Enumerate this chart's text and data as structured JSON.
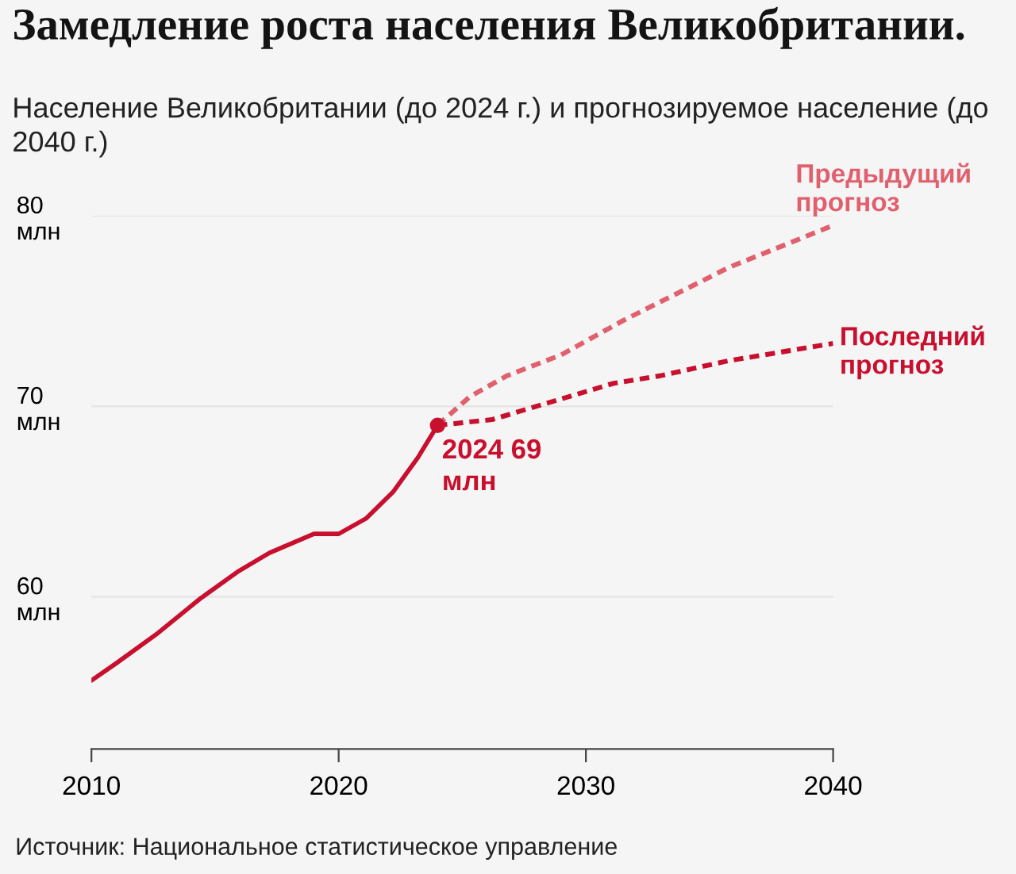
{
  "chart_data": {
    "type": "line",
    "title": "Замедление роста населения Великобритании.",
    "subtitle": "Население Великобритании (до 2024 г.) и прогнозируемое население (до 2040 г.)",
    "annotations": [
      {
        "text": "2024 69\nмлн",
        "x": 2024,
        "y": 69
      },
      "Источник: Национальное статистическое управление"
    ],
    "series": [
      {
        "color": "#c8102e",
        "line_style": "solid",
        "x": [
          2010,
          2011,
          2012.7,
          2014.4,
          2015.9,
          2017.2,
          2019,
          2020,
          2021.1,
          2022.2,
          2023.2,
          2024
        ],
        "values": [
          55.6,
          56.5,
          58.1,
          59.9,
          61.3,
          62.3,
          63.3,
          63.3,
          64.1,
          65.5,
          67.3,
          69
        ]
      },
      {
        "name": "Предыдущий прогноз",
        "color": "#e0606e",
        "line_style": "dotted",
        "x": [
          2024,
          2025.3,
          2026.8,
          2029,
          2031.5,
          2035.8,
          2040
        ],
        "values": [
          69,
          70.5,
          71.6,
          72.7,
          74.5,
          77.3,
          79.5
        ]
      },
      {
        "name": "Последний прогноз",
        "color": "#c8102e",
        "line_style": "dotted",
        "x": [
          2024,
          2026.2,
          2031.1,
          2033,
          2035.8,
          2040
        ],
        "values": [
          69,
          69.3,
          71.2,
          71.6,
          72.4,
          73.3
        ]
      }
    ],
    "xlim": [
      2010,
      2040
    ],
    "xticks": [
      2010,
      2020,
      2030,
      2040
    ],
    "ylim": [
      52,
      80
    ],
    "yticks": [
      {
        "value": 60,
        "label": "60\nмлн"
      },
      {
        "value": 70,
        "label": "70\nмлн"
      },
      {
        "value": 80,
        "label": "80\nмлн"
      }
    ],
    "grid": "y",
    "legend": false
  }
}
